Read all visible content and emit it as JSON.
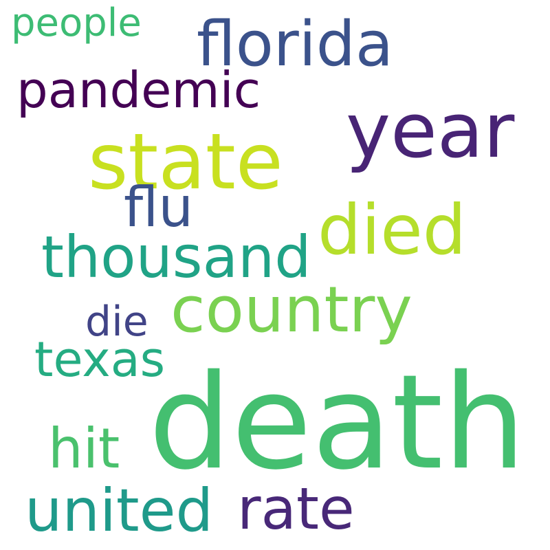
{
  "words": [
    {
      "text": "people",
      "color": "#3dbc74"
    },
    {
      "text": "florida",
      "color": "#3b528b"
    },
    {
      "text": "pandemic",
      "color": "#440154"
    },
    {
      "text": "year",
      "color": "#482475"
    },
    {
      "text": "state",
      "color": "#c8e020"
    },
    {
      "text": "flu",
      "color": "#3b528b"
    },
    {
      "text": "died",
      "color": "#b5de2b"
    },
    {
      "text": "thousand",
      "color": "#20a386"
    },
    {
      "text": "country",
      "color": "#7ad151"
    },
    {
      "text": "die",
      "color": "#414487"
    },
    {
      "text": "texas",
      "color": "#25ac82"
    },
    {
      "text": "death",
      "color": "#44bf70"
    },
    {
      "text": "hit",
      "color": "#4ac16d"
    },
    {
      "text": "rate",
      "color": "#482878"
    },
    {
      "text": "united",
      "color": "#1f9a8a"
    }
  ]
}
